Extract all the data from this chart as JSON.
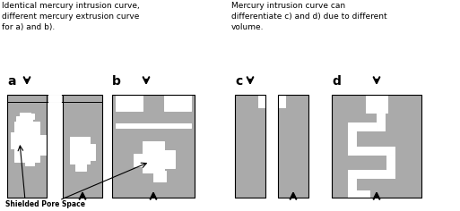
{
  "title_left": "Identical mercury intrusion curve,\ndifferent mercury extrusion curve\nfor a) and b).",
  "title_right": "Mercury intrusion curve can\ndifferentiate c) and d) due to different\nvolume.",
  "label_a": "a",
  "label_b": "b",
  "label_c": "c",
  "label_d": "d",
  "annotation": "Shielded Pore Space",
  "gray": "#aaaaaa",
  "white": "#ffffff",
  "black": "#000000",
  "bg": "#ffffff",
  "figsize": [
    5.13,
    2.36
  ],
  "dpi": 100
}
